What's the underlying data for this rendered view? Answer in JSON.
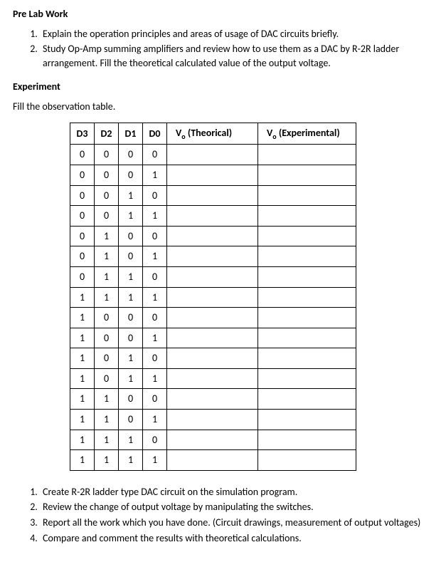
{
  "prelab": {
    "heading": "Pre Lab Work",
    "items": [
      "Explain the operation principles and areas of usage of DAC circuits briefly.",
      "Study Op-Amp summing amplifiers and review how to use them as a DAC by R-2R ladder arrangement. Fill the theoretical calculated value of the output voltage."
    ]
  },
  "experiment": {
    "heading": "Experiment",
    "instruction": "Fill the observation table.",
    "table": {
      "headers": {
        "d3": "D3",
        "d2": "D2",
        "d1": "D1",
        "d0": "D0",
        "vo_th_prefix": "V",
        "vo_th_sub": "o",
        "vo_th_suffix": " (Theorical)",
        "vo_ex_prefix": "V",
        "vo_ex_sub": "o",
        "vo_ex_suffix": " (Experimental)"
      },
      "rows": [
        {
          "d3": "0",
          "d2": "0",
          "d1": "0",
          "d0": "0",
          "th": "",
          "ex": ""
        },
        {
          "d3": "0",
          "d2": "0",
          "d1": "0",
          "d0": "1",
          "th": "",
          "ex": ""
        },
        {
          "d3": "0",
          "d2": "0",
          "d1": "1",
          "d0": "0",
          "th": "",
          "ex": ""
        },
        {
          "d3": "0",
          "d2": "0",
          "d1": "1",
          "d0": "1",
          "th": "",
          "ex": ""
        },
        {
          "d3": "0",
          "d2": "1",
          "d1": "0",
          "d0": "0",
          "th": "",
          "ex": ""
        },
        {
          "d3": "0",
          "d2": "1",
          "d1": "0",
          "d0": "1",
          "th": "",
          "ex": ""
        },
        {
          "d3": "0",
          "d2": "1",
          "d1": "1",
          "d0": "0",
          "th": "",
          "ex": ""
        },
        {
          "d3": "1",
          "d2": "1",
          "d1": "1",
          "d0": "1",
          "th": "",
          "ex": ""
        },
        {
          "d3": "1",
          "d2": "0",
          "d1": "0",
          "d0": "0",
          "th": "",
          "ex": ""
        },
        {
          "d3": "1",
          "d2": "0",
          "d1": "0",
          "d0": "1",
          "th": "",
          "ex": ""
        },
        {
          "d3": "1",
          "d2": "0",
          "d1": "1",
          "d0": "0",
          "th": "",
          "ex": ""
        },
        {
          "d3": "1",
          "d2": "0",
          "d1": "1",
          "d0": "1",
          "th": "",
          "ex": ""
        },
        {
          "d3": "1",
          "d2": "1",
          "d1": "0",
          "d0": "0",
          "th": "",
          "ex": ""
        },
        {
          "d3": "1",
          "d2": "1",
          "d1": "0",
          "d0": "1",
          "th": "",
          "ex": ""
        },
        {
          "d3": "1",
          "d2": "1",
          "d1": "1",
          "d0": "0",
          "th": "",
          "ex": ""
        },
        {
          "d3": "1",
          "d2": "1",
          "d1": "1",
          "d0": "1",
          "th": "",
          "ex": ""
        }
      ]
    },
    "steps": [
      "Create R-2R ladder type DAC circuit on the simulation program.",
      "Review the change of output voltage by manipulating the switches.",
      "Report all the work which you have done. (Circuit drawings, measurement of output voltages)",
      "Compare and comment the results with theoretical calculations."
    ]
  },
  "styling": {
    "background_color": "#ffffff",
    "text_color": "#000000",
    "border_color": "#000000",
    "font_family": "Calibri, Arial, sans-serif",
    "body_fontsize": 14,
    "heading_weight": "bold",
    "table_col_d_width": 34,
    "table_col_vo_width": 128,
    "table_col_vo2_width": 138,
    "table_margin_left": 80
  }
}
